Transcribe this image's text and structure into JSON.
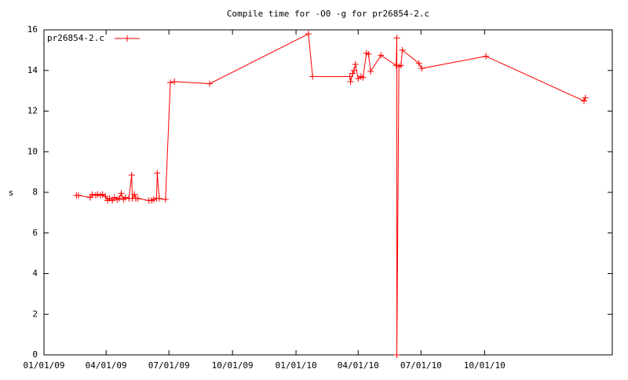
{
  "chart_data": {
    "type": "line",
    "title": "Compile time for -O0 -g for pr26854-2.c",
    "y_label": "s",
    "x": [
      "2009-02-17",
      "2009-02-20",
      "2009-03-09",
      "2009-03-12",
      "2009-03-17",
      "2009-03-20",
      "2009-03-24",
      "2009-03-27",
      "2009-03-31",
      "2009-04-03",
      "2009-04-06",
      "2009-04-10",
      "2009-04-13",
      "2009-04-17",
      "2009-04-20",
      "2009-04-23",
      "2009-04-26",
      "2009-04-29",
      "2009-05-04",
      "2009-05-08",
      "2009-05-09",
      "2009-05-12",
      "2009-05-14",
      "2009-05-17",
      "2009-06-02",
      "2009-06-06",
      "2009-06-09",
      "2009-06-13",
      "2009-06-14",
      "2009-06-17",
      "2009-06-26",
      "2009-07-03",
      "2009-07-09",
      "2009-08-29",
      "2010-01-19",
      "2010-01-25",
      "2010-03-20",
      "2010-03-21",
      "2010-03-24",
      "2010-03-26",
      "2010-03-28",
      "2010-04-01",
      "2010-04-05",
      "2010-04-08",
      "2010-04-13",
      "2010-04-16",
      "2010-04-19",
      "2010-05-04",
      "2010-05-26",
      "2010-05-27",
      "2010-05-27",
      "2010-05-30",
      "2010-06-02",
      "2010-06-04",
      "2010-06-28",
      "2010-07-02",
      "2010-10-03",
      "2011-02-22",
      "2011-02-24"
    ],
    "series": [
      {
        "name": "pr26854-2.c",
        "color": "#ff0000",
        "values": [
          7.85,
          7.85,
          7.75,
          7.9,
          7.85,
          7.9,
          7.85,
          7.9,
          7.8,
          7.6,
          7.7,
          7.6,
          7.75,
          7.65,
          7.7,
          7.95,
          7.65,
          7.75,
          7.7,
          8.85,
          7.7,
          7.9,
          7.7,
          7.7,
          7.6,
          7.6,
          7.65,
          7.7,
          8.95,
          7.7,
          7.65,
          13.4,
          13.45,
          13.35,
          15.8,
          13.7,
          13.7,
          13.45,
          13.85,
          14.0,
          14.3,
          13.6,
          13.7,
          13.65,
          14.85,
          14.8,
          13.95,
          14.75,
          14.25,
          15.6,
          0,
          14.2,
          14.25,
          15.0,
          14.35,
          14.1,
          14.7,
          12.5,
          12.65
        ]
      }
    ],
    "xlim": [
      "2009-01-01",
      "2011-04-04"
    ],
    "xticks": [
      {
        "value": "2009-01-01",
        "label": "01/01/09"
      },
      {
        "value": "2009-04-01",
        "label": "04/01/09"
      },
      {
        "value": "2009-07-01",
        "label": "07/01/09"
      },
      {
        "value": "2009-10-01",
        "label": "10/01/09"
      },
      {
        "value": "2010-01-01",
        "label": "01/01/10"
      },
      {
        "value": "2010-04-01",
        "label": "04/01/10"
      },
      {
        "value": "2010-07-01",
        "label": "07/01/10"
      },
      {
        "value": "2010-10-01",
        "label": "10/01/10"
      }
    ],
    "ylim": [
      0,
      16
    ],
    "yticks": [
      0,
      2,
      4,
      6,
      8,
      10,
      12,
      14,
      16
    ],
    "legend": "top-left"
  }
}
